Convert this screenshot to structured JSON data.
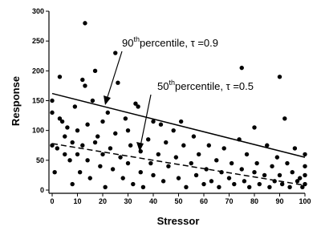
{
  "chart_data": {
    "type": "scatter",
    "x_label": "Stressor",
    "y_label": "Response",
    "xlim": [
      0,
      100
    ],
    "xticks": [
      0,
      10,
      20,
      30,
      40,
      50,
      60,
      70,
      80,
      90,
      100
    ],
    "ylim": [
      0,
      300
    ],
    "yticks": [
      0,
      50,
      100,
      150,
      200,
      250,
      300
    ],
    "color": "#000000",
    "x": [
      0,
      0,
      0,
      1,
      2,
      3,
      3,
      4,
      5,
      5,
      6,
      7,
      8,
      8,
      9,
      10,
      10,
      11,
      12,
      12,
      13,
      13,
      14,
      14,
      15,
      16,
      17,
      17,
      18,
      19,
      20,
      20,
      21,
      22,
      23,
      24,
      25,
      25,
      26,
      27,
      28,
      29,
      30,
      30,
      31,
      32,
      33,
      34,
      35,
      35,
      36,
      38,
      39,
      40,
      40,
      42,
      43,
      44,
      45,
      46,
      48,
      49,
      50,
      51,
      52,
      53,
      55,
      56,
      57,
      58,
      60,
      61,
      62,
      63,
      65,
      66,
      67,
      68,
      70,
      71,
      72,
      74,
      75,
      75,
      76,
      77,
      78,
      80,
      80,
      81,
      82,
      84,
      85,
      86,
      87,
      88,
      89,
      90,
      90,
      91,
      92,
      93,
      94,
      95,
      96,
      97,
      98,
      99,
      100,
      100,
      100,
      100
    ],
    "y": [
      150,
      130,
      75,
      30,
      70,
      190,
      120,
      115,
      90,
      60,
      105,
      50,
      80,
      10,
      140,
      100,
      60,
      30,
      185,
      75,
      280,
      175,
      110,
      50,
      20,
      150,
      200,
      80,
      90,
      40,
      115,
      60,
      5,
      130,
      70,
      35,
      230,
      95,
      180,
      55,
      20,
      120,
      100,
      45,
      75,
      10,
      145,
      140,
      65,
      30,
      5,
      85,
      45,
      115,
      25,
      60,
      110,
      15,
      80,
      40,
      100,
      55,
      20,
      115,
      75,
      5,
      45,
      90,
      25,
      60,
      10,
      35,
      75,
      15,
      50,
      5,
      30,
      70,
      20,
      45,
      10,
      85,
      205,
      35,
      15,
      60,
      5,
      105,
      30,
      45,
      10,
      25,
      75,
      5,
      40,
      15,
      55,
      190,
      25,
      10,
      120,
      45,
      5,
      30,
      70,
      15,
      20,
      5,
      40,
      60,
      10,
      25
    ],
    "lines": [
      {
        "x": [
          0,
          100
        ],
        "y": [
          162,
          55
        ],
        "style": "solid"
      },
      {
        "x": [
          0,
          100
        ],
        "y": [
          78,
          8
        ],
        "style": "dashed"
      }
    ],
    "annotations": [
      {
        "number": "90",
        "superscript": "th",
        "text": "percentile, τ =0.9"
      },
      {
        "number": "50",
        "superscript": "th",
        "text": "percentile, τ =0.5"
      }
    ]
  }
}
